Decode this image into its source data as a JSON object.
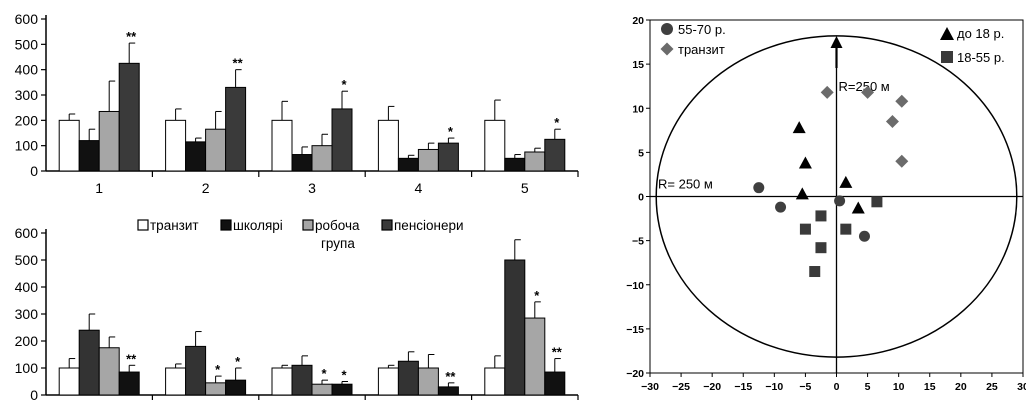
{
  "chart_data": [
    {
      "type": "bar",
      "ylim": [
        0,
        600
      ],
      "yticks": [
        0,
        100,
        200,
        300,
        400,
        500,
        600
      ],
      "categories": [
        "1",
        "2",
        "3",
        "4",
        "5"
      ],
      "grid": false,
      "series": [
        {
          "name": "транзит",
          "color": "#ffffff",
          "values": [
            200,
            200,
            200,
            200,
            200
          ],
          "errors": [
            25,
            45,
            75,
            55,
            80
          ],
          "marks": [
            "",
            "",
            "",
            "",
            ""
          ]
        },
        {
          "name": "школярі",
          "color": "#111111",
          "values": [
            120,
            115,
            65,
            50,
            50
          ],
          "errors": [
            45,
            15,
            30,
            12,
            15
          ],
          "marks": [
            "",
            "",
            "",
            "",
            ""
          ]
        },
        {
          "name": "робоча група",
          "color": "#a6a6a6",
          "values": [
            235,
            165,
            100,
            85,
            75
          ],
          "errors": [
            120,
            70,
            45,
            25,
            15
          ],
          "marks": [
            "",
            "",
            "",
            "",
            ""
          ]
        },
        {
          "name": "пенсіонери",
          "color": "#3a3a3a",
          "values": [
            425,
            330,
            245,
            110,
            125
          ],
          "errors": [
            80,
            70,
            70,
            20,
            40
          ],
          "marks": [
            "**",
            "**",
            "*",
            "*",
            "*"
          ]
        }
      ]
    },
    {
      "type": "bar",
      "ylim": [
        0,
        600
      ],
      "yticks": [
        0,
        100,
        200,
        300,
        400,
        500,
        600
      ],
      "categories": [
        "",
        "",
        "",
        "",
        ""
      ],
      "legend": {
        "placement": "top",
        "items": [
          {
            "label": "транзит",
            "color": "#ffffff"
          },
          {
            "label": "школярі",
            "color": "#111111"
          },
          {
            "label": "робоча",
            "label2": "група",
            "color": "#a6a6a6"
          },
          {
            "label": "пенсіонери",
            "color": "#3a3a3a"
          }
        ]
      },
      "series": [
        {
          "name": "транзит",
          "color": "#ffffff",
          "values": [
            100,
            100,
            100,
            100,
            100
          ],
          "errors": [
            35,
            15,
            10,
            10,
            45
          ],
          "marks": [
            "",
            "",
            "",
            "",
            ""
          ]
        },
        {
          "name": "пенсіонери",
          "color": "#333333",
          "values": [
            240,
            180,
            110,
            125,
            500
          ],
          "errors": [
            60,
            55,
            35,
            35,
            75
          ],
          "marks": [
            "",
            "",
            "",
            "",
            ""
          ]
        },
        {
          "name": "робоча група",
          "color": "#a6a6a6",
          "values": [
            175,
            45,
            40,
            100,
            285
          ],
          "errors": [
            40,
            25,
            15,
            50,
            60
          ],
          "marks": [
            "",
            "*",
            "*",
            "",
            "*"
          ]
        },
        {
          "name": "школярі",
          "color": "#111111",
          "values": [
            85,
            55,
            40,
            30,
            85
          ],
          "errors": [
            25,
            45,
            10,
            15,
            50
          ],
          "marks": [
            "**",
            "*",
            "*",
            "**",
            "**"
          ]
        }
      ]
    },
    {
      "type": "scatter",
      "xlim": [
        -30,
        30
      ],
      "ylim": [
        -20,
        20
      ],
      "xticks": [
        -30,
        -25,
        -20,
        -15,
        -10,
        -5,
        0,
        5,
        10,
        15,
        20,
        25,
        30
      ],
      "yticks": [
        -20,
        -15,
        -10,
        -5,
        0,
        5,
        10,
        15,
        20
      ],
      "circle_label_top": "R=250 м",
      "circle_label_left": "R= 250 м",
      "legend_left": [
        "55-70 р.",
        "транзит"
      ],
      "legend_right": [
        "до 18 р.",
        "18-55 р."
      ],
      "series": [
        {
          "name": "55-70 р.",
          "marker": "circle",
          "points": [
            [
              -12.5,
              1
            ],
            [
              -9,
              -1.2
            ],
            [
              0.5,
              -0.5
            ],
            [
              4.5,
              -4.5
            ]
          ]
        },
        {
          "name": "транзит",
          "marker": "diamond",
          "points": [
            [
              -1.5,
              11.8
            ],
            [
              5,
              11.8
            ],
            [
              10.5,
              10.8
            ],
            [
              9,
              8.5
            ],
            [
              10.5,
              4
            ]
          ]
        },
        {
          "name": "до 18 р.",
          "marker": "triangle",
          "points": [
            [
              -6,
              7.8
            ],
            [
              -5,
              3.8
            ],
            [
              -5.5,
              0.3
            ],
            [
              1.5,
              1.6
            ],
            [
              3.5,
              -1.3
            ]
          ]
        },
        {
          "name": "18-55 р.",
          "marker": "square",
          "points": [
            [
              -5,
              -3.7
            ],
            [
              -2.5,
              -2.2
            ],
            [
              -2.5,
              -5.8
            ],
            [
              -3.5,
              -8.5
            ],
            [
              1.5,
              -3.7
            ],
            [
              6.5,
              -0.6
            ]
          ]
        }
      ]
    }
  ]
}
